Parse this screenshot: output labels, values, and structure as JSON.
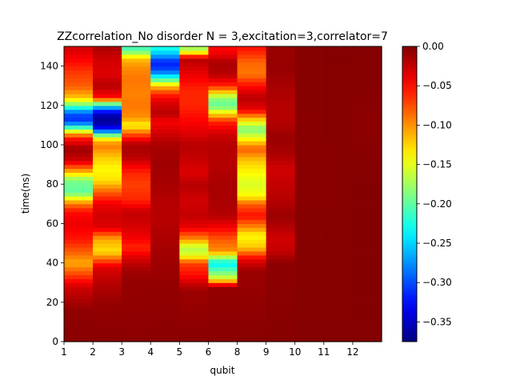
{
  "chart_data": {
    "type": "heatmap",
    "title": "ZZcorrelation_No disorder N =  3,excitation=3,correlator=7",
    "xlabel": "qubit",
    "ylabel": "time(ns)",
    "x_tick_labels": [
      "1",
      "2",
      "3",
      "4",
      "5",
      "6",
      "8",
      "9",
      "10",
      "11",
      "12"
    ],
    "xlim": [
      0,
      11
    ],
    "ylim": [
      0,
      150
    ],
    "y_ticks": [
      0,
      20,
      40,
      60,
      80,
      100,
      120,
      140
    ],
    "y_tick_labels": [
      "0",
      "20",
      "40",
      "60",
      "80",
      "100",
      "120",
      "140"
    ],
    "colormap": "jet",
    "color_range": [
      -0.375,
      0.0
    ],
    "colorbar_ticks": [
      0.0,
      -0.05,
      -0.1,
      -0.15,
      -0.2,
      -0.25,
      -0.3,
      -0.35
    ],
    "colorbar_tick_labels": [
      "0.00",
      "−0.05",
      "−0.10",
      "−0.15",
      "−0.20",
      "−0.25",
      "−0.30",
      "−0.35"
    ],
    "time_step_ns": 2,
    "columns": [
      {
        "qubit_index": 1,
        "profile": [
          [
            0,
            -0.004
          ],
          [
            16,
            -0.006
          ],
          [
            28,
            -0.03
          ],
          [
            34,
            -0.07
          ],
          [
            40,
            -0.11
          ],
          [
            46,
            -0.08
          ],
          [
            52,
            -0.055
          ],
          [
            60,
            -0.04
          ],
          [
            66,
            -0.05
          ],
          [
            70,
            -0.09
          ],
          [
            76,
            -0.2
          ],
          [
            82,
            -0.19
          ],
          [
            86,
            -0.12
          ],
          [
            92,
            -0.03
          ],
          [
            98,
            -0.01
          ],
          [
            104,
            -0.06
          ],
          [
            108,
            -0.18
          ],
          [
            112,
            -0.31
          ],
          [
            116,
            -0.3
          ],
          [
            120,
            -0.2
          ],
          [
            124,
            -0.12
          ],
          [
            130,
            -0.08
          ],
          [
            136,
            -0.07
          ],
          [
            144,
            -0.045
          ],
          [
            150,
            -0.03
          ]
        ]
      },
      {
        "qubit_index": 2,
        "profile": [
          [
            0,
            -0.004
          ],
          [
            20,
            -0.008
          ],
          [
            30,
            -0.02
          ],
          [
            38,
            -0.035
          ],
          [
            46,
            -0.13
          ],
          [
            52,
            -0.11
          ],
          [
            58,
            -0.035
          ],
          [
            64,
            -0.03
          ],
          [
            70,
            -0.04
          ],
          [
            76,
            -0.08
          ],
          [
            82,
            -0.13
          ],
          [
            88,
            -0.14
          ],
          [
            94,
            -0.12
          ],
          [
            100,
            -0.09
          ],
          [
            104,
            -0.15
          ],
          [
            108,
            -0.32
          ],
          [
            112,
            -0.37
          ],
          [
            116,
            -0.35
          ],
          [
            120,
            -0.24
          ],
          [
            124,
            -0.05
          ],
          [
            130,
            -0.02
          ],
          [
            136,
            -0.035
          ],
          [
            144,
            -0.03
          ],
          [
            150,
            -0.015
          ]
        ]
      },
      {
        "qubit_index": 3,
        "profile": [
          [
            0,
            -0.005
          ],
          [
            30,
            -0.008
          ],
          [
            36,
            -0.012
          ],
          [
            42,
            -0.03
          ],
          [
            48,
            -0.06
          ],
          [
            54,
            -0.04
          ],
          [
            60,
            -0.03
          ],
          [
            66,
            -0.025
          ],
          [
            72,
            -0.06
          ],
          [
            80,
            -0.07
          ],
          [
            86,
            -0.06
          ],
          [
            94,
            -0.02
          ],
          [
            100,
            -0.015
          ],
          [
            104,
            -0.055
          ],
          [
            110,
            -0.14
          ],
          [
            114,
            -0.1
          ],
          [
            120,
            -0.09
          ],
          [
            126,
            -0.095
          ],
          [
            134,
            -0.09
          ],
          [
            140,
            -0.1
          ],
          [
            144,
            -0.12
          ],
          [
            148,
            -0.2
          ],
          [
            150,
            -0.21
          ]
        ]
      },
      {
        "qubit_index": 4,
        "profile": [
          [
            0,
            -0.004
          ],
          [
            30,
            -0.008
          ],
          [
            50,
            -0.015
          ],
          [
            60,
            -0.02
          ],
          [
            70,
            -0.02
          ],
          [
            80,
            -0.015
          ],
          [
            90,
            -0.012
          ],
          [
            100,
            -0.015
          ],
          [
            106,
            -0.03
          ],
          [
            112,
            -0.045
          ],
          [
            116,
            -0.02
          ],
          [
            122,
            -0.035
          ],
          [
            126,
            -0.06
          ],
          [
            130,
            -0.12
          ],
          [
            134,
            -0.22
          ],
          [
            138,
            -0.3
          ],
          [
            142,
            -0.32
          ],
          [
            146,
            -0.26
          ],
          [
            150,
            -0.22
          ]
        ]
      },
      {
        "qubit_index": 5,
        "profile": [
          [
            0,
            -0.004
          ],
          [
            26,
            -0.01
          ],
          [
            34,
            -0.05
          ],
          [
            40,
            -0.07
          ],
          [
            44,
            -0.15
          ],
          [
            48,
            -0.17
          ],
          [
            52,
            -0.1
          ],
          [
            58,
            -0.04
          ],
          [
            64,
            -0.025
          ],
          [
            72,
            -0.03
          ],
          [
            80,
            -0.02
          ],
          [
            86,
            -0.035
          ],
          [
            94,
            -0.025
          ],
          [
            100,
            -0.02
          ],
          [
            106,
            -0.035
          ],
          [
            114,
            -0.05
          ],
          [
            120,
            -0.06
          ],
          [
            128,
            -0.06
          ],
          [
            136,
            -0.04
          ],
          [
            144,
            -0.02
          ],
          [
            148,
            -0.17
          ],
          [
            150,
            -0.17
          ]
        ]
      },
      {
        "qubit_index": 6,
        "profile": [
          [
            0,
            -0.004
          ],
          [
            28,
            -0.008
          ],
          [
            32,
            -0.15
          ],
          [
            36,
            -0.2
          ],
          [
            40,
            -0.24
          ],
          [
            46,
            -0.1
          ],
          [
            52,
            -0.08
          ],
          [
            58,
            -0.045
          ],
          [
            64,
            -0.02
          ],
          [
            72,
            -0.015
          ],
          [
            80,
            -0.015
          ],
          [
            90,
            -0.02
          ],
          [
            100,
            -0.02
          ],
          [
            106,
            -0.03
          ],
          [
            112,
            -0.06
          ],
          [
            116,
            -0.13
          ],
          [
            120,
            -0.2
          ],
          [
            124,
            -0.18
          ],
          [
            130,
            -0.06
          ],
          [
            136,
            -0.02
          ],
          [
            142,
            -0.015
          ],
          [
            146,
            -0.04
          ],
          [
            150,
            -0.05
          ]
        ]
      },
      {
        "qubit_index": 7,
        "profile": [
          [
            0,
            -0.003
          ],
          [
            36,
            -0.01
          ],
          [
            42,
            -0.04
          ],
          [
            48,
            -0.12
          ],
          [
            54,
            -0.14
          ],
          [
            58,
            -0.1
          ],
          [
            64,
            -0.05
          ],
          [
            70,
            -0.08
          ],
          [
            74,
            -0.14
          ],
          [
            80,
            -0.155
          ],
          [
            86,
            -0.14
          ],
          [
            92,
            -0.12
          ],
          [
            98,
            -0.08
          ],
          [
            104,
            -0.15
          ],
          [
            108,
            -0.19
          ],
          [
            112,
            -0.14
          ],
          [
            118,
            -0.04
          ],
          [
            124,
            -0.02
          ],
          [
            130,
            -0.05
          ],
          [
            136,
            -0.09
          ],
          [
            142,
            -0.085
          ],
          [
            146,
            -0.065
          ],
          [
            150,
            -0.05
          ]
        ]
      },
      {
        "qubit_index": 8,
        "profile": [
          [
            0,
            -0.003
          ],
          [
            40,
            -0.005
          ],
          [
            46,
            -0.025
          ],
          [
            52,
            -0.03
          ],
          [
            58,
            -0.02
          ],
          [
            64,
            -0.01
          ],
          [
            72,
            -0.02
          ],
          [
            80,
            -0.025
          ],
          [
            88,
            -0.03
          ],
          [
            96,
            -0.015
          ],
          [
            104,
            -0.01
          ],
          [
            112,
            -0.02
          ],
          [
            120,
            -0.02
          ],
          [
            130,
            -0.015
          ],
          [
            140,
            -0.008
          ],
          [
            146,
            -0.01
          ],
          [
            150,
            -0.008
          ]
        ]
      },
      {
        "qubit_index": 9,
        "profile": [
          [
            0,
            -0.002
          ],
          [
            50,
            -0.003
          ],
          [
            80,
            -0.004
          ],
          [
            110,
            -0.004
          ],
          [
            130,
            -0.003
          ],
          [
            150,
            -0.003
          ]
        ]
      },
      {
        "qubit_index": 10,
        "profile": [
          [
            0,
            -0.002
          ],
          [
            60,
            -0.003
          ],
          [
            100,
            -0.003
          ],
          [
            150,
            -0.002
          ]
        ]
      },
      {
        "qubit_index": 11,
        "profile": [
          [
            0,
            -0.002
          ],
          [
            80,
            -0.002
          ],
          [
            110,
            -0.005
          ],
          [
            130,
            -0.003
          ],
          [
            150,
            -0.002
          ]
        ]
      }
    ]
  }
}
